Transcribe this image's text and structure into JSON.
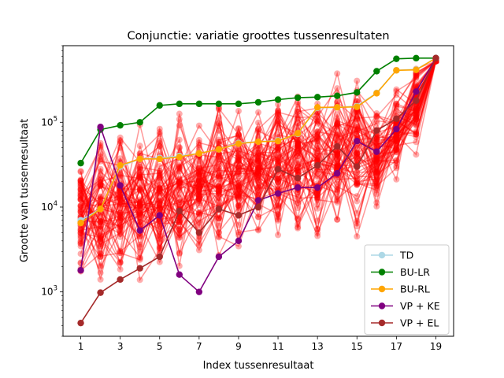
{
  "chart_data": {
    "type": "line",
    "title": "Conjunctie: variatie groottes tussenresultaten",
    "xlabel": "Index tussenresultaat",
    "ylabel": "Grootte van tussenresultaat",
    "x": [
      1,
      2,
      3,
      4,
      5,
      6,
      7,
      8,
      9,
      10,
      11,
      12,
      13,
      14,
      15,
      16,
      17,
      18,
      19
    ],
    "xticks": [
      1,
      3,
      5,
      7,
      9,
      11,
      13,
      15,
      17,
      19
    ],
    "xlim": [
      0.1,
      19.9
    ],
    "yscale": "log",
    "ylim": [
      300,
      800000
    ],
    "ytick_labels": [
      "10^3",
      "10^4",
      "10^5"
    ],
    "grid": false,
    "legend_position": "lower-right",
    "background_series": {
      "color": "#ff0000",
      "opacity": 0.4,
      "description": "many individual plans (red)"
    },
    "series": [
      {
        "name": "TD",
        "color": "#add8e6",
        "values": [
          7000,
          9500,
          30000,
          37000,
          38000,
          40000,
          43000,
          48000,
          57000,
          59000,
          61000,
          73000,
          148000,
          150000,
          155000,
          222000,
          410000,
          420000,
          570000
        ]
      },
      {
        "name": "BU-LR",
        "color": "#008000",
        "values": [
          33000,
          82000,
          92000,
          100000,
          158000,
          165000,
          165000,
          165000,
          165000,
          172000,
          185000,
          195000,
          198000,
          205000,
          225000,
          400000,
          560000,
          570000,
          570000
        ]
      },
      {
        "name": "BU-RL",
        "color": "#ffa500",
        "values": [
          6500,
          9500,
          31000,
          37000,
          37000,
          39000,
          43000,
          48000,
          56000,
          59000,
          60000,
          74000,
          150000,
          150000,
          152000,
          220000,
          410000,
          415000,
          570000
        ]
      },
      {
        "name": "VP + KE",
        "color": "#800080",
        "values": [
          1800,
          88000,
          18000,
          5300,
          8000,
          1600,
          1000,
          2600,
          4000,
          12000,
          14500,
          17000,
          17000,
          25000,
          60000,
          45000,
          83000,
          230000,
          570000
        ]
      },
      {
        "name": "VP + EL",
        "color": "#a52a2a",
        "values": [
          430,
          980,
          1400,
          1900,
          2600,
          9000,
          5000,
          9500,
          8000,
          10000,
          28000,
          22000,
          31000,
          52000,
          30000,
          80000,
          110000,
          180000,
          570000
        ]
      }
    ]
  }
}
